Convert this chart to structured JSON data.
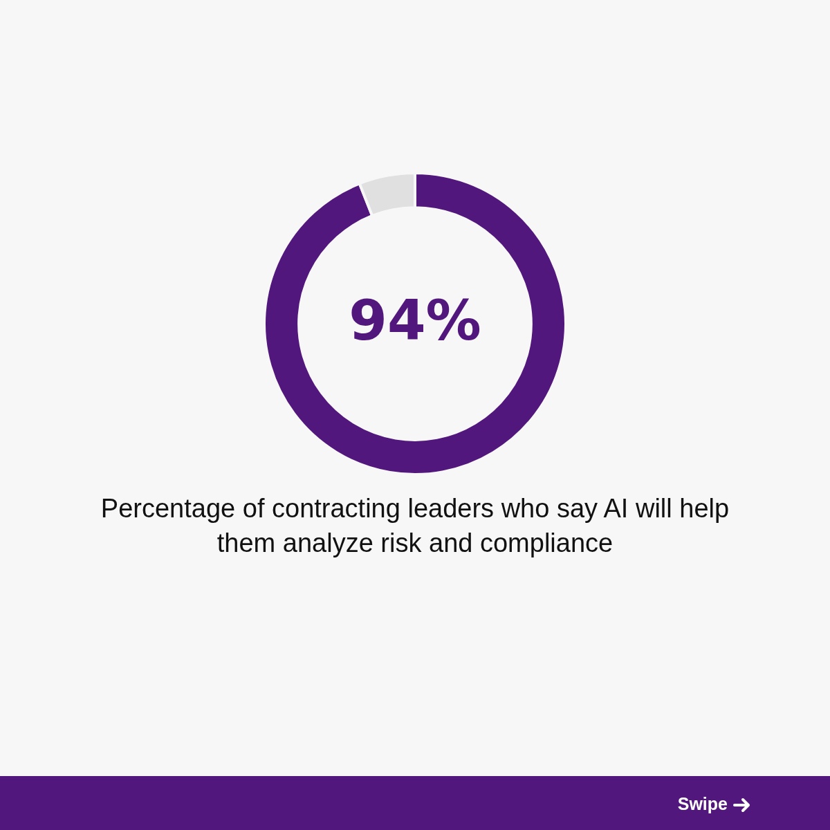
{
  "chart_data": {
    "type": "donut",
    "title": "Percentage of contracting leaders who say AI will help them analyze risk and compliance",
    "categories": [
      null,
      null
    ],
    "values": [
      94,
      6
    ],
    "colors": [
      "#52177c",
      "#e0e0e0"
    ],
    "value_labels": [
      "94%",
      null
    ],
    "legend": false,
    "annotations": [
      "Swipe"
    ]
  }
}
